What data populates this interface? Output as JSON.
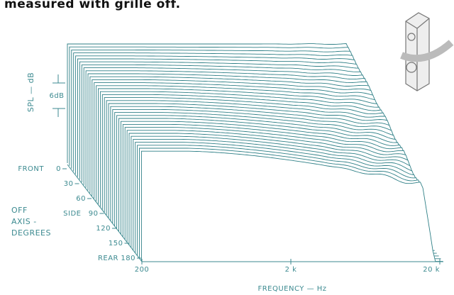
{
  "caption": "measured with grille off.",
  "y_axis": {
    "label": "SPL — dB",
    "scale_label": "6dB"
  },
  "depth_axis": {
    "title": [
      "OFF",
      "AXIS -",
      "DEGREES"
    ],
    "ticks": [
      {
        "prefix": "FRONT",
        "label": "0"
      },
      {
        "label": "30"
      },
      {
        "label": "60"
      },
      {
        "prefix": "SIDE",
        "label": "90"
      },
      {
        "label": "120"
      },
      {
        "label": "150"
      },
      {
        "prefix": "REAR",
        "label": "180"
      }
    ]
  },
  "x_axis": {
    "label": "FREQUENCY — Hz",
    "ticks": [
      "200",
      "2 k",
      "20 k"
    ]
  }
}
